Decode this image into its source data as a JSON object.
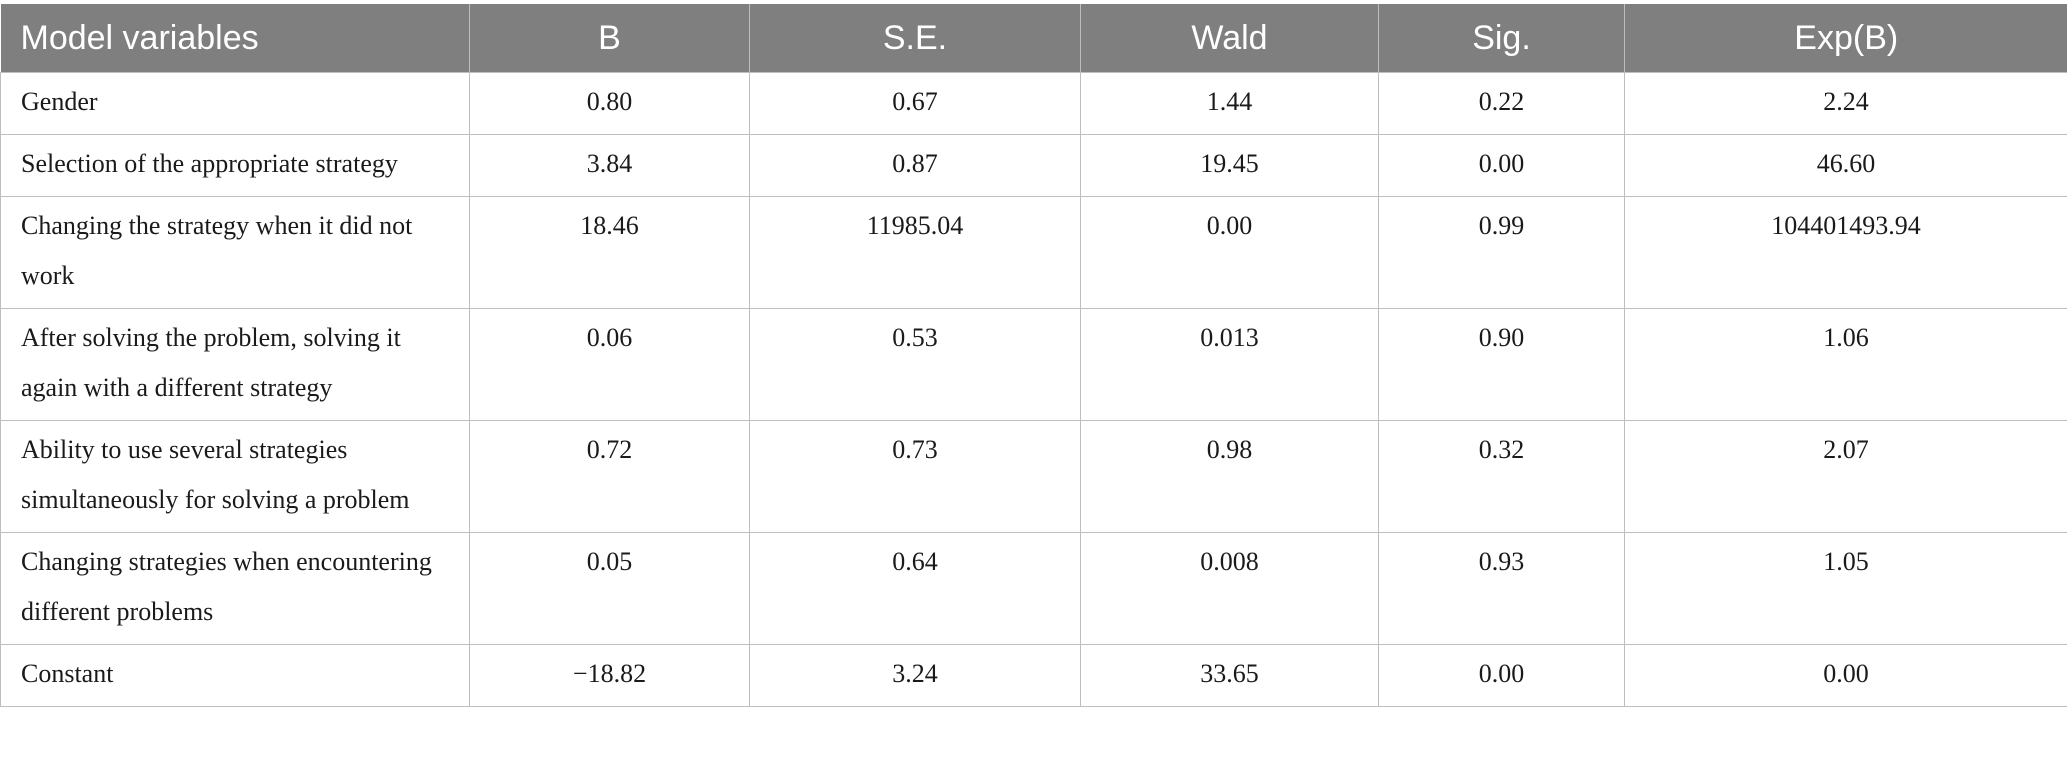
{
  "table": {
    "headers": [
      "Model variables",
      "B",
      "S.E.",
      "Wald",
      "Sig.",
      "Exp(B)"
    ],
    "rows": [
      {
        "label": "Gender",
        "b": "0.80",
        "se": "0.67",
        "wald": "1.44",
        "sig": "0.22",
        "expb": "2.24"
      },
      {
        "label": "Selection of the appropriate strategy",
        "b": "3.84",
        "se": "0.87",
        "wald": "19.45",
        "sig": "0.00",
        "expb": "46.60"
      },
      {
        "label": "Changing the strategy when it did not work",
        "b": "18.46",
        "se": "11985.04",
        "wald": "0.00",
        "sig": "0.99",
        "expb": "104401493.94"
      },
      {
        "label": "After solving the problem, solving it again with a different strategy",
        "b": "0.06",
        "se": "0.53",
        "wald": "0.013",
        "sig": "0.90",
        "expb": "1.06"
      },
      {
        "label": "Ability to use several strategies simultaneously for solving a problem",
        "b": "0.72",
        "se": "0.73",
        "wald": "0.98",
        "sig": "0.32",
        "expb": "2.07"
      },
      {
        "label": "Changing strategies when encountering different problems",
        "b": "0.05",
        "se": "0.64",
        "wald": "0.008",
        "sig": "0.93",
        "expb": "1.05"
      },
      {
        "label": "Constant",
        "b": "−18.82",
        "se": "3.24",
        "wald": "33.65",
        "sig": "0.00",
        "expb": "0.00"
      }
    ]
  }
}
